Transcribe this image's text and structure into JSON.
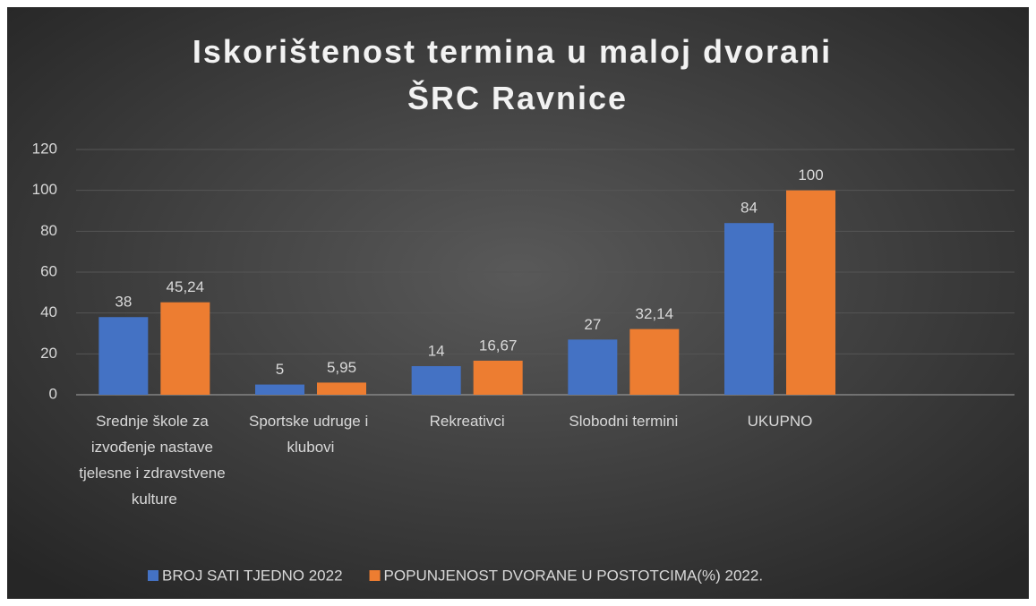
{
  "chart_data": {
    "type": "bar",
    "title": "Iskorištenost termina u maloj dvorani\nŠRC Ravnice",
    "categories": [
      "Srednje škole za izvođenje nastave tjelesne i zdravstvene kulture",
      "Sportske udruge i klubovi",
      "Rekreativci",
      "Slobodni termini",
      "UKUPNO",
      null
    ],
    "series": [
      {
        "name": "BROJ SATI TJEDNO 2022",
        "color": "#4472c4",
        "values": [
          38,
          5,
          14,
          27,
          84,
          null
        ]
      },
      {
        "name": "POPUNJENOST DVORANE U POSTOTCIMA(%) 2022.",
        "color": "#ed7d31",
        "values": [
          45.24,
          5.95,
          16.67,
          32.14,
          100,
          null
        ],
        "value_labels": [
          "45,24",
          "5,95",
          "16,67",
          "32,14",
          "100",
          null
        ]
      }
    ],
    "ylim": [
      0,
      120
    ],
    "yticks": [
      0,
      20,
      40,
      60,
      80,
      100,
      120
    ],
    "grid": true,
    "legend": "bottom"
  }
}
